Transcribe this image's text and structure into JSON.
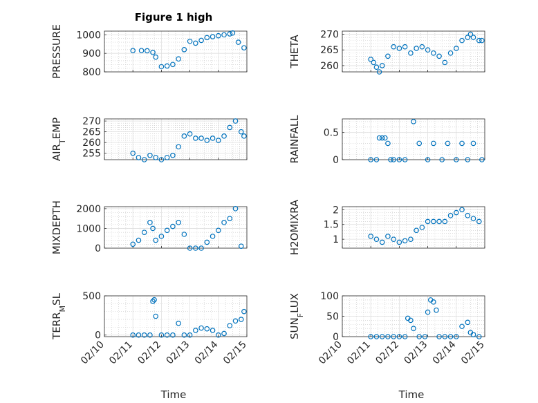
{
  "figure": {
    "title": "Figure 1 high",
    "xlabel": "Time"
  },
  "colors": {
    "marker": "#0072BD",
    "axis": "#262626",
    "grid_major": "#dfdfdf",
    "grid_minor": "#c8c8c8"
  },
  "chart_data": [
    {
      "type": "scatter",
      "ylabel": "PRESSURE",
      "ylim": [
        800,
        1020
      ],
      "yticks": [
        800,
        900,
        1000
      ],
      "ytick_labels": [
        "800",
        "900",
        "1000"
      ],
      "xlim": [
        "02/10",
        "02/15"
      ],
      "grid": "on",
      "minor_grid": "on",
      "x": [
        11.0,
        11.3,
        11.5,
        11.7,
        11.8,
        12.0,
        12.2,
        12.4,
        12.6,
        12.8,
        13.0,
        13.2,
        13.4,
        13.6,
        13.8,
        14.0,
        14.2,
        14.4,
        14.5,
        14.7,
        14.9
      ],
      "y": [
        915,
        915,
        914,
        905,
        880,
        828,
        832,
        840,
        870,
        920,
        965,
        955,
        970,
        985,
        990,
        995,
        1000,
        1005,
        1010,
        960,
        930
      ]
    },
    {
      "type": "scatter",
      "ylabel": "THETA",
      "ylim": [
        258,
        271
      ],
      "yticks": [
        260,
        265,
        270
      ],
      "ytick_labels": [
        "260",
        "265",
        "270"
      ],
      "xlim": [
        "02/10",
        "02/15"
      ],
      "grid": "on",
      "minor_grid": "on",
      "x": [
        11.0,
        11.1,
        11.2,
        11.3,
        11.4,
        11.6,
        11.8,
        12.0,
        12.2,
        12.4,
        12.6,
        12.8,
        13.0,
        13.2,
        13.4,
        13.6,
        13.8,
        14.0,
        14.2,
        14.4,
        14.5,
        14.6,
        14.8,
        14.9
      ],
      "y": [
        262,
        261,
        259.5,
        258,
        260,
        263,
        266,
        265.5,
        266,
        264,
        265.5,
        266,
        265,
        264,
        263,
        261,
        264,
        265.5,
        268,
        269,
        270,
        269,
        268,
        268
      ]
    },
    {
      "type": "scatter",
      "ylabel": "AIR_TEMP",
      "ylim": [
        252,
        271
      ],
      "yticks": [
        255,
        260,
        265,
        270
      ],
      "ytick_labels": [
        "255",
        "260",
        "265",
        "270"
      ],
      "xlim": [
        "02/10",
        "02/15"
      ],
      "grid": "on",
      "minor_grid": "on",
      "x": [
        11.0,
        11.2,
        11.4,
        11.6,
        11.8,
        12.0,
        12.2,
        12.4,
        12.6,
        12.8,
        13.0,
        13.2,
        13.4,
        13.6,
        13.8,
        14.0,
        14.2,
        14.4,
        14.6,
        14.8,
        14.9
      ],
      "y": [
        255,
        253,
        252,
        254,
        253,
        252,
        253,
        254,
        258,
        263,
        264,
        262,
        262,
        261,
        262,
        261,
        263,
        267,
        270,
        265,
        263
      ]
    },
    {
      "type": "scatter",
      "ylabel": "RAINFALL",
      "ylim": [
        0,
        0.75
      ],
      "yticks": [
        0,
        0.5
      ],
      "ytick_labels": [
        "0",
        "0.5"
      ],
      "xlim": [
        "02/10",
        "02/15"
      ],
      "grid": "on",
      "minor_grid": "on",
      "x": [
        11.0,
        11.2,
        11.3,
        11.4,
        11.5,
        11.6,
        11.7,
        11.8,
        12.0,
        12.2,
        12.5,
        12.7,
        13.0,
        13.2,
        13.5,
        13.7,
        14.0,
        14.2,
        14.4,
        14.6,
        14.9
      ],
      "y": [
        0,
        0,
        0.4,
        0.4,
        0.4,
        0.3,
        0,
        0,
        0,
        0,
        0.7,
        0.3,
        0,
        0.3,
        0,
        0.3,
        0,
        0.3,
        0,
        0.3,
        0
      ]
    },
    {
      "type": "scatter",
      "ylabel": "MIXDEPTH",
      "ylim": [
        0,
        2100
      ],
      "yticks": [
        0,
        1000,
        2000
      ],
      "ytick_labels": [
        "0",
        "1000",
        "2000"
      ],
      "xlim": [
        "02/10",
        "02/15"
      ],
      "grid": "on",
      "minor_grid": "on",
      "x": [
        11.0,
        11.2,
        11.4,
        11.6,
        11.7,
        11.8,
        12.0,
        12.2,
        12.4,
        12.6,
        12.8,
        13.0,
        13.2,
        13.4,
        13.6,
        13.8,
        14.0,
        14.2,
        14.4,
        14.6,
        14.8
      ],
      "y": [
        200,
        400,
        800,
        1300,
        1000,
        400,
        600,
        900,
        1100,
        1300,
        700,
        0,
        0,
        0,
        300,
        600,
        900,
        1300,
        1500,
        2000,
        100
      ]
    },
    {
      "type": "scatter",
      "ylabel": "H2OMIXRA",
      "ylim": [
        0.7,
        2.1
      ],
      "yticks": [
        1,
        1.5,
        2
      ],
      "ytick_labels": [
        "1",
        "1.5",
        "2"
      ],
      "xlim": [
        "02/10",
        "02/15"
      ],
      "grid": "on",
      "minor_grid": "on",
      "x": [
        11.0,
        11.2,
        11.4,
        11.6,
        11.8,
        12.0,
        12.2,
        12.4,
        12.6,
        12.8,
        13.0,
        13.2,
        13.4,
        13.6,
        13.8,
        14.0,
        14.2,
        14.4,
        14.6,
        14.8
      ],
      "y": [
        1.1,
        1.0,
        0.9,
        1.1,
        1.0,
        0.9,
        0.95,
        1.0,
        1.3,
        1.4,
        1.6,
        1.6,
        1.6,
        1.6,
        1.8,
        1.9,
        2.0,
        1.8,
        1.7,
        1.6
      ]
    },
    {
      "type": "scatter",
      "ylabel": "TERR_MSL",
      "ylim": [
        -20,
        500
      ],
      "yticks": [
        0,
        500
      ],
      "ytick_labels": [
        "0",
        "500"
      ],
      "xlim": [
        "02/10",
        "02/15"
      ],
      "grid": "on",
      "minor_grid": "on",
      "x": [
        11.0,
        11.2,
        11.4,
        11.6,
        11.7,
        11.75,
        11.8,
        12.0,
        12.2,
        12.4,
        12.6,
        12.8,
        13.0,
        13.2,
        13.4,
        13.6,
        13.8,
        14.0,
        14.2,
        14.4,
        14.6,
        14.8,
        14.9
      ],
      "y": [
        0,
        0,
        0,
        0,
        430,
        450,
        240,
        0,
        0,
        0,
        150,
        0,
        0,
        60,
        90,
        80,
        60,
        0,
        20,
        120,
        180,
        200,
        300
      ]
    },
    {
      "type": "scatter",
      "ylabel": "SUN_FLUX",
      "ylim": [
        0,
        100
      ],
      "yticks": [
        0,
        50,
        100
      ],
      "ytick_labels": [
        "0",
        "50",
        "100"
      ],
      "xlim": [
        "02/10",
        "02/15"
      ],
      "grid": "on",
      "minor_grid": "on",
      "x": [
        11.0,
        11.2,
        11.4,
        11.6,
        11.8,
        12.0,
        12.2,
        12.3,
        12.4,
        12.5,
        12.7,
        12.9,
        13.0,
        13.1,
        13.2,
        13.3,
        13.4,
        13.6,
        13.8,
        14.0,
        14.2,
        14.4,
        14.5,
        14.6,
        14.8
      ],
      "y": [
        0,
        0,
        0,
        0,
        0,
        0,
        0,
        45,
        40,
        20,
        0,
        0,
        60,
        90,
        85,
        65,
        0,
        0,
        0,
        0,
        25,
        35,
        10,
        5,
        0
      ]
    }
  ],
  "xticks": {
    "values": [
      10,
      11,
      12,
      13,
      14,
      15
    ],
    "labels": [
      "02/10",
      "02/11",
      "02/12",
      "02/13",
      "02/14",
      "02/15"
    ]
  }
}
